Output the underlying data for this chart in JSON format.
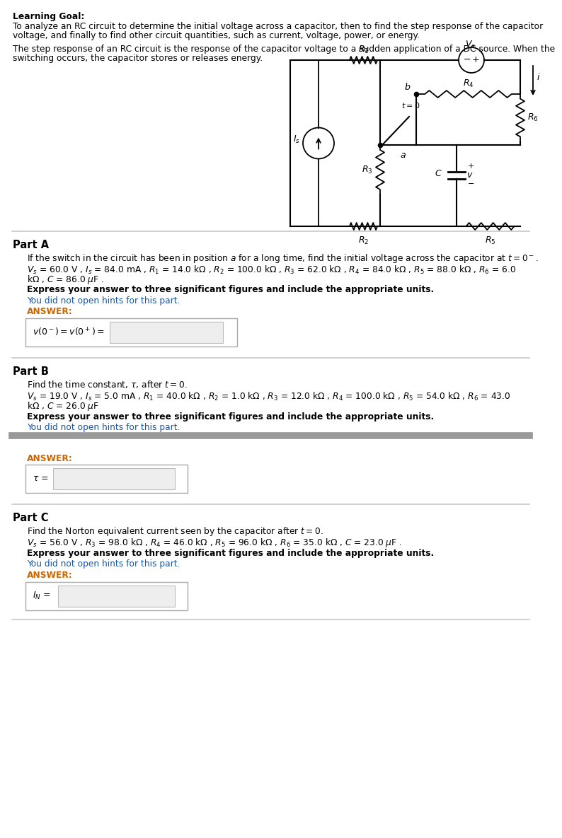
{
  "bg_color": "#ffffff",
  "link_color": "#1a56a0",
  "answer_color": "#cc6600",
  "hint_color": "#1a56a0",
  "sep_color_light": "#c8c8c8",
  "sep_color_dark": "#888888",
  "learning_goal_title": "Learning Goal:",
  "body1": "To analyze an RC circuit to determine the initial voltage across a capacitor, then to find the step response of the capacitor",
  "body2": "voltage, and finally to find other circuit quantities, such as current, voltage, power, or energy.",
  "step1": "The step response of an RC circuit is the response of the capacitor voltage to a sudden application of a DC source. When the",
  "step2": "switching occurs, the capacitor stores or releases energy.",
  "partA_label": "Part A",
  "partA_desc": "If the switch in the circuit has been in position $a$ for a long time, find the initial voltage across the capacitor at $t = 0^-$.",
  "partA_p1": "$V_s$ = 60.0 V , $I_s$ = 84.0 mA , $R_1$ = 14.0 k$\\Omega$ , $R_2$ = 100.0 k$\\Omega$ , $R_3$ = 62.0 k$\\Omega$ , $R_4$ = 84.0 k$\\Omega$ , $R_5$ = 88.0 k$\\Omega$ , $R_6$ = 6.0",
  "partA_p2": "k$\\Omega$ , $C$ = 86.0 $\\mu$F .",
  "partA_express": "Express your answer to three significant figures and include the appropriate units.",
  "partA_hint": "You did not open hints for this part.",
  "partA_answer": "ANSWER:",
  "partA_box": "$v(0^-) = v(0^+) =$",
  "partB_label": "Part B",
  "partB_desc": "Find the time constant, $\\tau$, after $t = 0$.",
  "partB_p1": "$V_s$ = 19.0 V , $I_s$ = 5.0 mA , $R_1$ = 40.0 k$\\Omega$ , $R_2$ = 1.0 k$\\Omega$ , $R_3$ = 12.0 k$\\Omega$ , $R_4$ = 100.0 k$\\Omega$ , $R_5$ = 54.0 k$\\Omega$ , $R_6$ = 43.0",
  "partB_p2": "k$\\Omega$ , $C$ = 26.0 $\\mu$F",
  "partB_express": "Express your answer to three significant figures and include the appropriate units.",
  "partB_hint": "You did not open hints for this part.",
  "partB_answer": "ANSWER:",
  "partB_box": "$\\tau$ =",
  "partC_label": "Part C",
  "partC_desc": "Find the Norton equivalent current seen by the capacitor after $t = 0$.",
  "partC_p1": "$V_s$ = 56.0 V , $R_3$ = 98.0 k$\\Omega$ , $R_4$ = 46.0 k$\\Omega$ , $R_5$ = 96.0 k$\\Omega$ , $R_6$ = 35.0 k$\\Omega$ , $C$ = 23.0 $\\mu$F .",
  "partC_express": "Express your answer to three significant figures and include the appropriate units.",
  "partC_hint": "You did not open hints for this part.",
  "partC_answer": "ANSWER:",
  "partC_box": "$I_N$ ="
}
